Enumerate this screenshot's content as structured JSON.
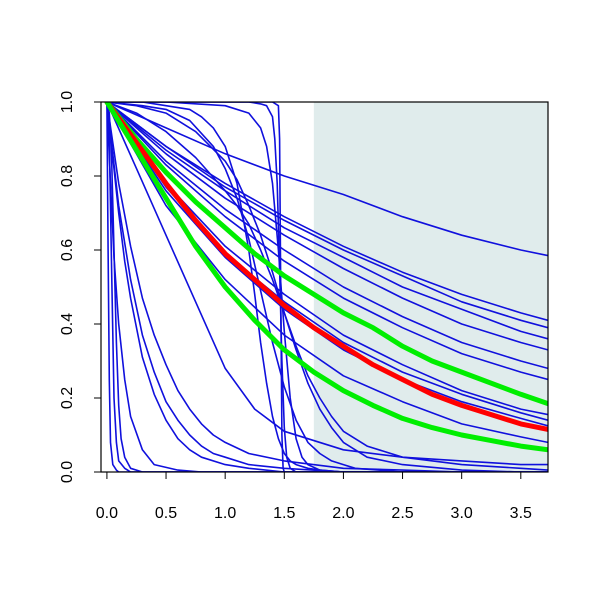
{
  "chart_data": {
    "type": "line",
    "title": "",
    "xlabel": "",
    "ylabel": "",
    "xlim": [
      -0.05,
      3.73
    ],
    "ylim": [
      0.0,
      1.0
    ],
    "grid": false,
    "legend": "none",
    "x_ticks": [
      "0.0",
      "0.5",
      "1.0",
      "1.5",
      "2.0",
      "2.5",
      "3.0",
      "3.5"
    ],
    "y_ticks": [
      "0.0",
      "0.2",
      "0.4",
      "0.6",
      "0.8",
      "1.0"
    ],
    "shaded_region": {
      "x_from": 1.75,
      "x_to": 3.73,
      "color": "#e0ecec"
    },
    "colors": {
      "blue": "#1010dd",
      "red": "#ff0000",
      "green": "#00ee00",
      "shade": "#e0ecec"
    },
    "series": [
      {
        "color": "blue",
        "x": [
          0,
          0.5,
          1.0,
          1.5,
          2.0,
          2.5,
          3.0,
          3.5,
          3.73
        ],
        "y": [
          1.0,
          0.93,
          0.86,
          0.8,
          0.75,
          0.69,
          0.64,
          0.6,
          0.585
        ]
      },
      {
        "color": "blue",
        "x": [
          0,
          0.5,
          1.0,
          1.5,
          2.0,
          2.5,
          3.0,
          3.5,
          3.73
        ],
        "y": [
          1.0,
          0.88,
          0.78,
          0.69,
          0.61,
          0.54,
          0.48,
          0.43,
          0.41
        ]
      },
      {
        "color": "blue",
        "x": [
          0,
          0.5,
          1.0,
          1.5,
          2.0,
          2.5,
          3.0,
          3.5,
          3.73
        ],
        "y": [
          1.0,
          0.88,
          0.77,
          0.68,
          0.6,
          0.53,
          0.46,
          0.41,
          0.39
        ]
      },
      {
        "color": "blue",
        "x": [
          0,
          0.5,
          1.0,
          1.5,
          2.0,
          2.5,
          3.0,
          3.5,
          3.73
        ],
        "y": [
          1.0,
          0.87,
          0.76,
          0.66,
          0.58,
          0.5,
          0.44,
          0.38,
          0.36
        ]
      },
      {
        "color": "blue",
        "x": [
          0,
          0.5,
          1.0,
          1.5,
          2.0,
          2.5,
          3.0,
          3.5,
          3.73
        ],
        "y": [
          1.0,
          0.86,
          0.74,
          0.64,
          0.55,
          0.47,
          0.4,
          0.35,
          0.33
        ]
      },
      {
        "color": "blue",
        "x": [
          0,
          0.5,
          1.0,
          1.5,
          2.0,
          2.5,
          3.0,
          3.5,
          3.73
        ],
        "y": [
          1.0,
          0.84,
          0.71,
          0.6,
          0.5,
          0.42,
          0.35,
          0.3,
          0.28
        ]
      },
      {
        "color": "blue",
        "x": [
          0,
          0.5,
          1.0,
          1.5,
          2.0,
          2.5,
          3.0,
          3.5,
          3.73
        ],
        "y": [
          1.0,
          0.83,
          0.69,
          0.57,
          0.47,
          0.39,
          0.32,
          0.27,
          0.25
        ]
      },
      {
        "color": "blue",
        "x": [
          0,
          0.5,
          1.0,
          1.5,
          2.0,
          2.5,
          3.0,
          3.5,
          3.73
        ],
        "y": [
          1.0,
          0.78,
          0.61,
          0.48,
          0.37,
          0.29,
          0.22,
          0.17,
          0.155
        ]
      },
      {
        "color": "blue",
        "x": [
          0,
          0.5,
          1.0,
          1.5,
          2.0,
          2.5,
          3.0,
          3.5,
          3.73
        ],
        "y": [
          1.0,
          0.77,
          0.59,
          0.46,
          0.35,
          0.27,
          0.21,
          0.16,
          0.14
        ]
      },
      {
        "color": "blue",
        "x": [
          0,
          0.5,
          1.0,
          1.5,
          2.0,
          2.5,
          3.0,
          3.5,
          3.73
        ],
        "y": [
          1.0,
          0.76,
          0.58,
          0.44,
          0.33,
          0.25,
          0.19,
          0.145,
          0.125
        ]
      },
      {
        "color": "blue",
        "x": [
          0,
          0.5,
          1.0,
          1.5,
          2.0,
          2.5,
          3.0,
          3.5,
          3.73
        ],
        "y": [
          1.0,
          0.72,
          0.52,
          0.37,
          0.26,
          0.19,
          0.13,
          0.095,
          0.08
        ]
      },
      {
        "color": "blue",
        "x": [
          0,
          0.25,
          0.5,
          0.75,
          1.0,
          1.25,
          1.5,
          2.0,
          2.5,
          3.0,
          3.5,
          3.73
        ],
        "y": [
          1.0,
          0.82,
          0.64,
          0.46,
          0.28,
          0.17,
          0.11,
          0.06,
          0.04,
          0.03,
          0.02,
          0.02
        ]
      },
      {
        "color": "blue",
        "x": [
          0,
          0.25,
          0.5,
          0.75,
          1.0,
          1.1,
          1.2,
          1.3,
          1.4,
          1.5,
          1.6,
          1.7,
          1.8,
          1.9,
          2.0,
          2.2,
          2.5,
          3.0,
          3.5,
          3.73
        ],
        "y": [
          1.0,
          0.97,
          0.92,
          0.85,
          0.76,
          0.72,
          0.67,
          0.6,
          0.52,
          0.43,
          0.34,
          0.26,
          0.2,
          0.15,
          0.11,
          0.07,
          0.04,
          0.02,
          0.01,
          0.005
        ]
      },
      {
        "color": "blue",
        "x": [
          0,
          0.25,
          0.5,
          0.75,
          1.0,
          1.1,
          1.2,
          1.3,
          1.4,
          1.5,
          1.6,
          1.7,
          1.8,
          1.9,
          2.0,
          2.2,
          2.5,
          3.0,
          3.5,
          3.73
        ],
        "y": [
          1.0,
          0.99,
          0.97,
          0.92,
          0.84,
          0.79,
          0.72,
          0.64,
          0.54,
          0.43,
          0.33,
          0.24,
          0.17,
          0.12,
          0.08,
          0.04,
          0.02,
          0.005,
          0.0,
          0.0
        ]
      },
      {
        "color": "blue",
        "x": [
          0,
          0.3,
          0.5,
          0.7,
          0.9,
          1.0,
          1.1,
          1.2,
          1.3,
          1.4,
          1.5,
          1.6,
          1.7,
          1.8,
          1.9,
          2.0,
          2.1,
          2.3,
          2.5,
          3.0,
          3.73
        ],
        "y": [
          1.0,
          0.99,
          0.98,
          0.95,
          0.88,
          0.82,
          0.74,
          0.63,
          0.49,
          0.35,
          0.23,
          0.14,
          0.08,
          0.05,
          0.03,
          0.02,
          0.01,
          0.005,
          0.0,
          0.0,
          0.0
        ]
      },
      {
        "color": "blue",
        "x": [
          0,
          0.3,
          0.5,
          0.7,
          0.8,
          0.9,
          1.0,
          1.1,
          1.2,
          1.25,
          1.3,
          1.35,
          1.4,
          1.45,
          1.5,
          1.55,
          1.6,
          1.7,
          1.8,
          2.0,
          2.5,
          3.73
        ],
        "y": [
          1.0,
          1.0,
          0.99,
          0.98,
          0.96,
          0.93,
          0.88,
          0.78,
          0.6,
          0.48,
          0.35,
          0.24,
          0.15,
          0.09,
          0.05,
          0.03,
          0.02,
          0.01,
          0.005,
          0.0,
          0.0,
          0.0
        ]
      },
      {
        "color": "blue",
        "x": [
          0,
          0.5,
          1.0,
          1.2,
          1.3,
          1.35,
          1.4,
          1.45,
          1.5,
          1.55,
          1.6,
          1.65,
          1.7,
          1.8,
          2.0,
          3.73
        ],
        "y": [
          1.0,
          1.0,
          0.99,
          0.97,
          0.93,
          0.88,
          0.78,
          0.6,
          0.38,
          0.2,
          0.09,
          0.04,
          0.02,
          0.005,
          0.0,
          0.0
        ]
      },
      {
        "color": "blue",
        "x": [
          0,
          0.5,
          1.0,
          1.2,
          1.3,
          1.35,
          1.4,
          1.42,
          1.44,
          1.46,
          1.48,
          1.5,
          1.52,
          1.55,
          1.6,
          3.73
        ],
        "y": [
          1.0,
          1.0,
          1.0,
          1.0,
          0.995,
          0.99,
          0.96,
          0.9,
          0.78,
          0.55,
          0.3,
          0.12,
          0.04,
          0.01,
          0.0,
          0.0
        ]
      },
      {
        "color": "blue",
        "x": [
          0,
          1.0,
          1.4,
          1.45,
          1.46,
          1.47,
          1.48,
          1.49,
          1.5,
          3.73
        ],
        "y": [
          1.0,
          1.0,
          1.0,
          0.99,
          0.9,
          0.5,
          0.1,
          0.01,
          0.0,
          0.0
        ]
      },
      {
        "color": "blue",
        "x": [
          0,
          0.1,
          0.2,
          0.3,
          0.4,
          0.5,
          0.6,
          0.7,
          0.8,
          0.9,
          1.0,
          1.2,
          1.5,
          2.0,
          2.5,
          3.0,
          3.73
        ],
        "y": [
          1.0,
          0.78,
          0.61,
          0.47,
          0.37,
          0.29,
          0.22,
          0.17,
          0.13,
          0.1,
          0.08,
          0.05,
          0.03,
          0.01,
          0.005,
          0.0,
          0.0
        ]
      },
      {
        "color": "blue",
        "x": [
          0,
          0.1,
          0.2,
          0.3,
          0.4,
          0.5,
          0.6,
          0.7,
          0.8,
          0.9,
          1.0,
          1.2,
          1.5,
          2.0,
          2.5,
          3.0,
          3.73
        ],
        "y": [
          1.0,
          0.72,
          0.52,
          0.37,
          0.27,
          0.19,
          0.14,
          0.1,
          0.07,
          0.05,
          0.04,
          0.02,
          0.01,
          0.0,
          0.0,
          0.0,
          0.0
        ]
      },
      {
        "color": "blue",
        "x": [
          0,
          0.05,
          0.1,
          0.15,
          0.2,
          0.3,
          0.4,
          0.5,
          0.6,
          0.7,
          0.8,
          1.0,
          1.2,
          1.5,
          2.0,
          3.73
        ],
        "y": [
          1.0,
          0.85,
          0.7,
          0.57,
          0.47,
          0.31,
          0.21,
          0.14,
          0.09,
          0.06,
          0.04,
          0.02,
          0.01,
          0.0,
          0.0,
          0.0
        ]
      },
      {
        "color": "blue",
        "x": [
          0,
          0.03,
          0.06,
          0.1,
          0.15,
          0.2,
          0.3,
          0.4,
          0.6,
          0.8,
          1.0,
          3.73
        ],
        "y": [
          1.0,
          0.78,
          0.58,
          0.4,
          0.25,
          0.15,
          0.06,
          0.02,
          0.005,
          0.0,
          0.0,
          0.0
        ]
      },
      {
        "color": "blue",
        "x": [
          0,
          0.02,
          0.04,
          0.06,
          0.08,
          0.1,
          0.15,
          0.2,
          0.3,
          0.5,
          3.73
        ],
        "y": [
          1.0,
          0.9,
          0.55,
          0.2,
          0.08,
          0.03,
          0.01,
          0.0,
          0.0,
          0.0,
          0.0
        ]
      },
      {
        "color": "blue",
        "x": [
          0,
          0.01,
          0.02,
          0.03,
          0.05,
          0.08,
          0.1,
          0.2,
          3.73
        ],
        "y": [
          1.0,
          0.6,
          0.25,
          0.08,
          0.02,
          0.005,
          0.0,
          0.0,
          0.0
        ]
      },
      {
        "color": "blue",
        "x": [
          0,
          0.02,
          0.04,
          0.06,
          0.08,
          0.1,
          0.12,
          0.15,
          0.2,
          0.3,
          3.73
        ],
        "y": [
          1.0,
          0.97,
          0.85,
          0.6,
          0.35,
          0.18,
          0.09,
          0.04,
          0.01,
          0.0,
          0.0
        ]
      },
      {
        "color": "green",
        "x": [
          0,
          0.25,
          0.5,
          0.75,
          1.0,
          1.25,
          1.5,
          1.75,
          2.0,
          2.25,
          2.5,
          2.75,
          3.0,
          3.25,
          3.5,
          3.73
        ],
        "y": [
          1.0,
          0.9,
          0.81,
          0.73,
          0.66,
          0.59,
          0.53,
          0.48,
          0.43,
          0.39,
          0.34,
          0.3,
          0.27,
          0.24,
          0.21,
          0.185
        ]
      },
      {
        "color": "red",
        "x": [
          0,
          0.25,
          0.5,
          0.75,
          1.0,
          1.25,
          1.5,
          1.75,
          2.0,
          2.25,
          2.5,
          2.75,
          3.0,
          3.25,
          3.5,
          3.73
        ],
        "y": [
          1.0,
          0.89,
          0.78,
          0.68,
          0.59,
          0.52,
          0.45,
          0.39,
          0.34,
          0.29,
          0.25,
          0.21,
          0.18,
          0.155,
          0.13,
          0.115
        ]
      },
      {
        "color": "green",
        "x": [
          0,
          0.25,
          0.5,
          0.75,
          1.0,
          1.25,
          1.5,
          1.75,
          2.0,
          2.25,
          2.5,
          2.75,
          3.0,
          3.25,
          3.5,
          3.73
        ],
        "y": [
          1.0,
          0.87,
          0.74,
          0.61,
          0.5,
          0.41,
          0.33,
          0.27,
          0.22,
          0.18,
          0.145,
          0.12,
          0.1,
          0.085,
          0.07,
          0.06
        ]
      }
    ]
  }
}
